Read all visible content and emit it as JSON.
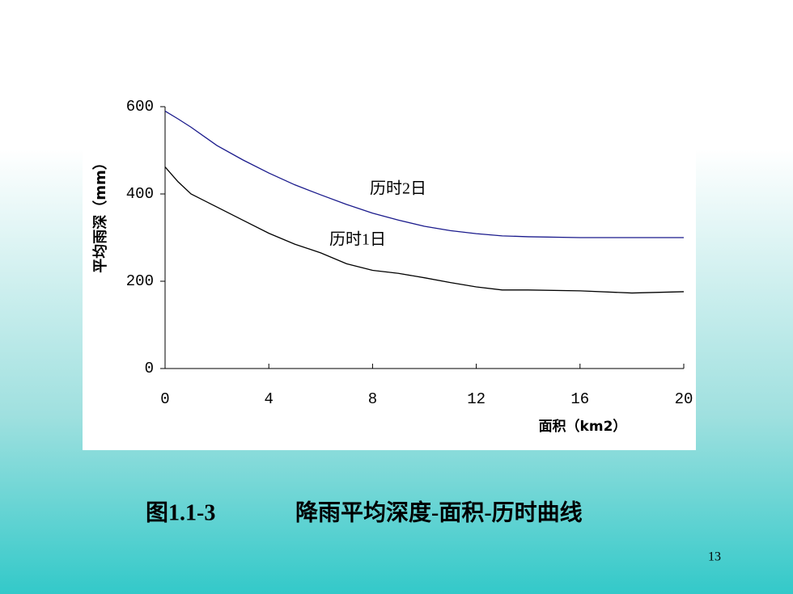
{
  "chart_data": {
    "type": "line",
    "x_label": "面积（km2）",
    "y_label": "平均雨深（mm）",
    "x": [
      0,
      0.5,
      1,
      2,
      3,
      4,
      5,
      6,
      7,
      8,
      9,
      10,
      11,
      12,
      13,
      14,
      16,
      18,
      20
    ],
    "series": [
      {
        "name": "历时2日",
        "color": "#1a1a8c",
        "values": [
          590,
          572,
          553,
          511,
          478,
          448,
          421,
          398,
          376,
          356,
          340,
          326,
          316,
          309,
          304,
          302,
          300,
          300,
          300
        ]
      },
      {
        "name": "历时1日",
        "color": "#000000",
        "values": [
          462,
          428,
          400,
          370,
          340,
          310,
          285,
          265,
          240,
          225,
          218,
          208,
          197,
          187,
          180,
          180,
          178,
          173,
          176
        ]
      }
    ],
    "xlim": [
      0,
      20
    ],
    "xticks": [
      0,
      4,
      8,
      12,
      16,
      20
    ],
    "ylim": [
      0,
      600
    ],
    "yticks": [
      0,
      200,
      400,
      600
    ],
    "grid": false
  },
  "caption": {
    "figure": "图1.1-3",
    "text": "降雨平均深度-面积-历时曲线"
  },
  "page_number": "13"
}
